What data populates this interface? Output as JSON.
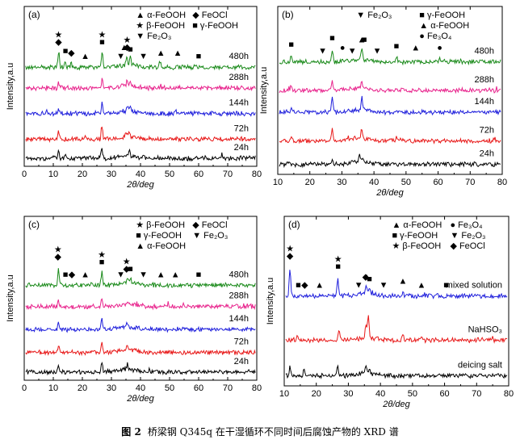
{
  "caption": {
    "number": "图 2",
    "text": "桥梁钢 Q345q 在干湿循环不同时间后腐蚀产物的 XRD 谱"
  },
  "chart_data": [
    {
      "type": "line",
      "panel": "(a)",
      "xlabel": "2θ/deg",
      "ylabel": "Intensity,a.u",
      "xlim": [
        0,
        80
      ],
      "xticks": [
        0,
        10,
        20,
        30,
        40,
        50,
        60,
        70,
        80
      ],
      "legend": [
        {
          "symbol": "▲",
          "label": "α-FeOOH"
        },
        {
          "symbol": "◆",
          "label": "FeOCl"
        },
        {
          "symbol": "★",
          "label": "β-FeOOH"
        },
        {
          "symbol": "■",
          "label": "γ-FeOOH"
        },
        {
          "symbol": "▼",
          "label": "Fe₂O₃"
        }
      ],
      "series": [
        {
          "name": "480h",
          "color": "#1a8a1a",
          "peaks": [
            [
              11.8,
              8
            ],
            [
              14.2,
              3
            ],
            [
              16.2,
              2
            ],
            [
              26.8,
              8
            ],
            [
              35.2,
              5
            ],
            [
              36.5,
              4
            ],
            [
              47.0,
              2
            ],
            [
              52.5,
              2
            ]
          ]
        },
        {
          "name": "288h",
          "color": "#e8238c",
          "peaks": [
            [
              11.8,
              3
            ],
            [
              26.8,
              5
            ],
            [
              35.5,
              3
            ],
            [
              36.6,
              2
            ],
            [
              46.8,
              1.5
            ]
          ]
        },
        {
          "name": "144h",
          "color": "#1f1fdc",
          "peaks": [
            [
              11.8,
              3
            ],
            [
              26.8,
              6
            ],
            [
              35.5,
              3
            ],
            [
              36.5,
              2
            ],
            [
              52.0,
              2
            ]
          ]
        },
        {
          "name": "72h",
          "color": "#e81919",
          "peaks": [
            [
              11.8,
              5
            ],
            [
              21.0,
              2
            ],
            [
              26.7,
              8
            ],
            [
              35.0,
              3
            ],
            [
              36.0,
              3
            ]
          ]
        },
        {
          "name": "24h",
          "color": "#000000",
          "peaks": [
            [
              11.8,
              4
            ],
            [
              14.2,
              2
            ],
            [
              26.7,
              6
            ],
            [
              36.2,
              3
            ],
            [
              40.8,
              2
            ]
          ]
        }
      ],
      "markers": [
        {
          "symbol": "◆",
          "x": 11.8
        },
        {
          "symbol": "★",
          "x": 11.8
        },
        {
          "symbol": "◆",
          "x": 16.2
        },
        {
          "symbol": "■",
          "x": 14.2
        },
        {
          "symbol": "▲",
          "x": 21.0
        },
        {
          "symbol": "■",
          "x": 26.8
        },
        {
          "symbol": "★",
          "x": 26.8
        },
        {
          "symbol": "▼",
          "x": 33.2
        },
        {
          "symbol": "▲",
          "x": 34.4
        },
        {
          "symbol": "◆",
          "x": 35.4
        },
        {
          "symbol": "★",
          "x": 35.4
        },
        {
          "symbol": "■",
          "x": 36.5
        },
        {
          "symbol": "▼",
          "x": 41.0
        },
        {
          "symbol": "▲",
          "x": 47.0
        },
        {
          "symbol": "▲",
          "x": 52.8
        },
        {
          "symbol": "■",
          "x": 60.0
        }
      ]
    },
    {
      "type": "line",
      "panel": "(b)",
      "xlabel": "2θ/deg",
      "ylabel": "Intensity,a.u",
      "xlim": [
        10,
        80
      ],
      "xticks": [
        10,
        20,
        30,
        40,
        50,
        60,
        70,
        80
      ],
      "legend": [
        {
          "symbol": "▼",
          "label": "Fe₂O₃"
        },
        {
          "symbol": "■",
          "label": "γ-FeOOH"
        },
        {
          "symbol": "▲",
          "label": "α-FeOOH"
        },
        {
          "symbol": "●",
          "label": "Fe₃O₄"
        }
      ],
      "series": [
        {
          "name": "480h",
          "color": "#1a8a1a",
          "peaks": [
            [
              14.2,
              4
            ],
            [
              27.0,
              8
            ],
            [
              30.2,
              2
            ],
            [
              36.2,
              7
            ],
            [
              47.0,
              3
            ],
            [
              53.0,
              2
            ],
            [
              60.5,
              2
            ]
          ]
        },
        {
          "name": "288h",
          "color": "#e8238c",
          "peaks": [
            [
              14.2,
              3
            ],
            [
              27.0,
              6
            ],
            [
              36.2,
              5
            ],
            [
              46.8,
              2
            ]
          ]
        },
        {
          "name": "144h",
          "color": "#1f1fdc",
          "peaks": [
            [
              14.2,
              3
            ],
            [
              27.0,
              9
            ],
            [
              36.2,
              8
            ],
            [
              47.0,
              2
            ]
          ]
        },
        {
          "name": "72h",
          "color": "#e81919",
          "peaks": [
            [
              14.2,
              3
            ],
            [
              27.0,
              7
            ],
            [
              36.2,
              6
            ],
            [
              47.0,
              2
            ]
          ]
        },
        {
          "name": "24h",
          "color": "#000000",
          "peaks": [
            [
              27.0,
              3
            ],
            [
              35.5,
              4
            ],
            [
              36.6,
              3
            ]
          ]
        }
      ],
      "markers": [
        {
          "symbol": "■",
          "x": 14.2
        },
        {
          "symbol": "▼",
          "x": 24.0
        },
        {
          "symbol": "■",
          "x": 27.0
        },
        {
          "symbol": "●",
          "x": 30.2
        },
        {
          "symbol": "▼",
          "x": 33.2
        },
        {
          "symbol": "▲",
          "x": 36.2
        },
        {
          "symbol": "■",
          "x": 37.0
        },
        {
          "symbol": "▼",
          "x": 41.0
        },
        {
          "symbol": "■",
          "x": 47.0
        },
        {
          "symbol": "▲",
          "x": 53.0
        },
        {
          "symbol": "●",
          "x": 60.5
        }
      ]
    },
    {
      "type": "line",
      "panel": "(c)",
      "xlabel": "2θ/deg",
      "ylabel": "Intensity,a.u",
      "xlim": [
        0,
        80
      ],
      "xticks": [
        0,
        10,
        20,
        30,
        40,
        50,
        60,
        70,
        80
      ],
      "legend": [
        {
          "symbol": "★",
          "label": "β-FeOOH"
        },
        {
          "symbol": "◆",
          "label": "FeOCl"
        },
        {
          "symbol": "■",
          "label": "γ-FeOOH"
        },
        {
          "symbol": "▼",
          "label": "Fe₂O₃"
        },
        {
          "symbol": "▲",
          "label": "α-FeOOH"
        }
      ],
      "series": [
        {
          "name": "480h",
          "color": "#1a8a1a",
          "peaks": [
            [
              11.8,
              10
            ],
            [
              26.7,
              7
            ],
            [
              35.5,
              3
            ],
            [
              36.6,
              3
            ]
          ]
        },
        {
          "name": "288h",
          "color": "#e8238c",
          "peaks": [
            [
              11.8,
              4
            ],
            [
              26.7,
              5
            ],
            [
              35.5,
              2
            ]
          ]
        },
        {
          "name": "144h",
          "color": "#1f1fdc",
          "peaks": [
            [
              11.8,
              4
            ],
            [
              26.7,
              6
            ],
            [
              35.5,
              3
            ]
          ]
        },
        {
          "name": "72h",
          "color": "#e81919",
          "peaks": [
            [
              11.8,
              4
            ],
            [
              26.7,
              6
            ],
            [
              35.5,
              3
            ]
          ]
        },
        {
          "name": "24h",
          "color": "#000000",
          "peaks": [
            [
              11.8,
              4
            ],
            [
              26.7,
              6
            ],
            [
              35.5,
              3
            ]
          ]
        }
      ],
      "markers": [
        {
          "symbol": "◆",
          "x": 11.6
        },
        {
          "symbol": "★",
          "x": 11.6
        },
        {
          "symbol": "■",
          "x": 14.2
        },
        {
          "symbol": "◆",
          "x": 16.4
        },
        {
          "symbol": "▲",
          "x": 21.0
        },
        {
          "symbol": "■",
          "x": 26.7
        },
        {
          "symbol": "★",
          "x": 26.7
        },
        {
          "symbol": "▼",
          "x": 33.2
        },
        {
          "symbol": "◆",
          "x": 35.2
        },
        {
          "symbol": "★",
          "x": 35.2
        },
        {
          "symbol": "■",
          "x": 36.5
        },
        {
          "symbol": "▼",
          "x": 41.0
        },
        {
          "symbol": "▲",
          "x": 47.0
        },
        {
          "symbol": "▲",
          "x": 52.0
        },
        {
          "symbol": "■",
          "x": 60.0
        }
      ]
    },
    {
      "type": "line",
      "panel": "(d)",
      "xlabel": "2θ/deg",
      "ylabel": "Intensity,a.u",
      "xlim": [
        10,
        80
      ],
      "xticks": [
        10,
        20,
        30,
        40,
        50,
        60,
        70,
        80
      ],
      "legend": [
        {
          "symbol": "▲",
          "label": "α-FeOOH"
        },
        {
          "symbol": "●",
          "label": "Fe₃O₄"
        },
        {
          "symbol": "■",
          "label": "γ-FeOOH"
        },
        {
          "symbol": "▼",
          "label": "Fe₂O₃"
        },
        {
          "symbol": "★",
          "label": "β-FeOOH"
        },
        {
          "symbol": "◆",
          "label": "FeOCl"
        }
      ],
      "series": [
        {
          "name": "mixed solution",
          "color": "#1f1fdc",
          "peaks": [
            [
              11.8,
              14
            ],
            [
              26.7,
              9
            ],
            [
              35.5,
              4
            ],
            [
              36.6,
              3
            ],
            [
              47.0,
              2
            ]
          ]
        },
        {
          "name": "NaHSO₃",
          "color": "#e81919",
          "peaks": [
            [
              14.2,
              2
            ],
            [
              27.0,
              5
            ],
            [
              35.5,
              6
            ],
            [
              36.2,
              10
            ],
            [
              47.0,
              3
            ],
            [
              53.0,
              2
            ]
          ]
        },
        {
          "name": "deicing salt",
          "color": "#000000",
          "peaks": [
            [
              11.8,
              5
            ],
            [
              16.2,
              3
            ],
            [
              26.7,
              4
            ],
            [
              35.5,
              3
            ],
            [
              36.5,
              2
            ]
          ]
        }
      ],
      "markers": [
        {
          "symbol": "◆",
          "x": 11.8
        },
        {
          "symbol": "★",
          "x": 11.8
        },
        {
          "symbol": "◆",
          "x": 16.4
        },
        {
          "symbol": "■",
          "x": 14.4
        },
        {
          "symbol": "▲",
          "x": 21.0
        },
        {
          "symbol": "■",
          "x": 26.8
        },
        {
          "symbol": "★",
          "x": 26.8
        },
        {
          "symbol": "▼",
          "x": 33.2
        },
        {
          "symbol": "◆",
          "x": 35.4
        },
        {
          "symbol": "▲",
          "x": 35.8
        },
        {
          "symbol": "■",
          "x": 36.6
        },
        {
          "symbol": "▼",
          "x": 41.0
        },
        {
          "symbol": "▲",
          "x": 47.0
        },
        {
          "symbol": "▲",
          "x": 52.8
        },
        {
          "symbol": "■",
          "x": 60.5
        }
      ]
    }
  ]
}
